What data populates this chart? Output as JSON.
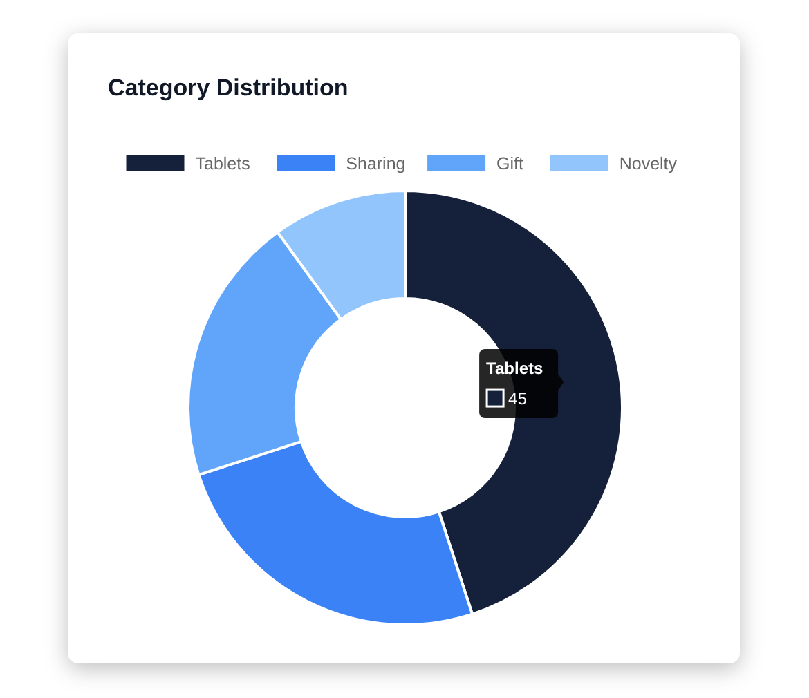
{
  "chart_data": {
    "type": "donut",
    "title": "Category Distribution",
    "categories": [
      "Tablets",
      "Sharing",
      "Gift",
      "Novelty"
    ],
    "values": [
      45,
      25,
      20,
      10
    ],
    "colors": [
      "#15213a",
      "#3b82f6",
      "#60a5fa",
      "#93c5fd"
    ],
    "value_labels": [
      "45",
      null,
      null,
      null
    ],
    "legend": "top"
  }
}
